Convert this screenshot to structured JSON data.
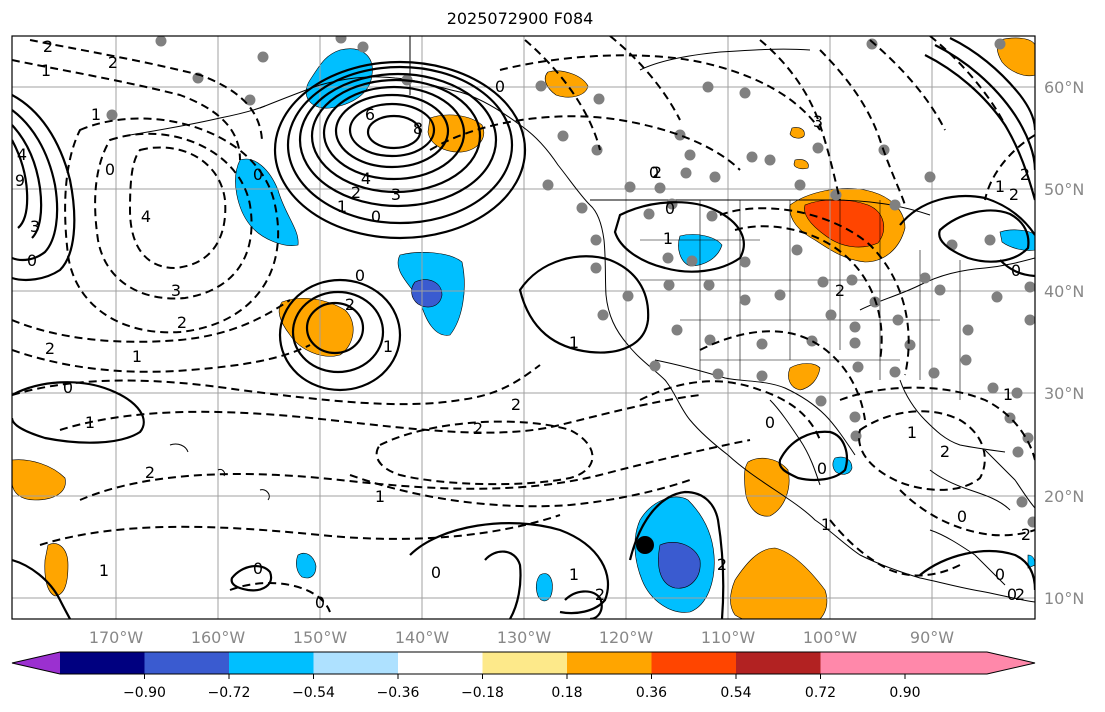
{
  "title": "2025072900 F084",
  "map": {
    "lon_ticks": [
      "170°W",
      "160°W",
      "150°W",
      "140°W",
      "130°W",
      "120°W",
      "110°W",
      "100°W",
      "90°W"
    ],
    "lat_ticks": [
      "60°N",
      "50°N",
      "40°N",
      "30°N",
      "20°N",
      "10°N"
    ],
    "contour_labels": [
      "2",
      "2",
      "1",
      "0",
      "0",
      "9",
      "4",
      "3",
      "4",
      "3",
      "2",
      "1",
      "2",
      "1",
      "0",
      "1",
      "2",
      "1",
      "6",
      "8",
      "4",
      "3",
      "2",
      "1",
      "0",
      "0",
      "2",
      "1",
      "0",
      "1",
      "2",
      "2",
      "1",
      "0",
      "1",
      "2",
      "0",
      "0",
      "0",
      "1",
      "2",
      "3",
      "0",
      "2",
      "2",
      "0",
      "1",
      "0",
      "1",
      "2",
      "0",
      "1",
      "2",
      "0",
      "0",
      "2",
      "1",
      "0",
      "2",
      "2",
      "0"
    ]
  },
  "colorbar": {
    "colors": [
      "#9b30d0",
      "#000080",
      "#3a5bd0",
      "#00bfff",
      "#aee1ff",
      "#ffffff",
      "#fde98a",
      "#ffa500",
      "#ff4500",
      "#b22222",
      "#ff88aa"
    ],
    "labels": [
      "−0.90",
      "−0.72",
      "−0.54",
      "−0.36",
      "−0.18",
      "0.18",
      "0.36",
      "0.54",
      "0.72",
      "0.90"
    ]
  }
}
